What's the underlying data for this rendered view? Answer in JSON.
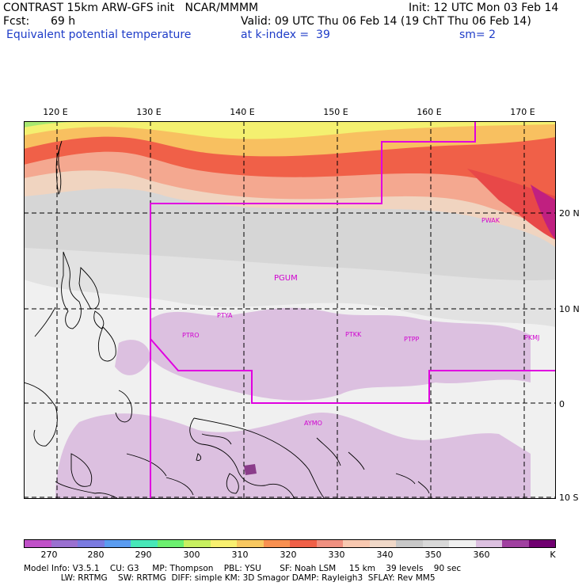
{
  "header": {
    "line1_left": "CONTRAST 15km ARW-GFS init   NCAR/MMMM",
    "line1_right": "Init: 12 UTC Mon 03 Feb 14",
    "fcst_label": "Fcst:",
    "fcst_value": "69 h",
    "valid": "Valid: 09 UTC Thu 06 Feb 14 (19 ChT Thu 06 Feb 14)",
    "field": "Equivalent potential temperature",
    "level": "at k-index =  39",
    "smoothing": "sm= 2"
  },
  "map": {
    "lon_labels": [
      "120 E",
      "130 E",
      "140 E",
      "150 E",
      "160 E",
      "170 E"
    ],
    "lat_labels": [
      "20 N",
      "10 N",
      "0",
      "10 S"
    ],
    "stations": [
      "PWAK",
      "PGUM",
      "PTYA",
      "PTRO",
      "PTKK",
      "PTPP",
      "PKMJ",
      "AYMO"
    ],
    "colors": {
      "boundary": "#e000e0",
      "land": "#000000"
    }
  },
  "colorbar": {
    "labels": [
      "270",
      "280",
      "290",
      "300",
      "310",
      "320",
      "330",
      "340",
      "350",
      "360"
    ],
    "unit": "K",
    "colors": [
      "#c050c8",
      "#9a70d0",
      "#7a7ae0",
      "#5a9cf0",
      "#48e8b8",
      "#6cf070",
      "#c8f060",
      "#f8f070",
      "#f8c860",
      "#f89050",
      "#f06048",
      "#f09080",
      "#f8c8b0",
      "#f0d8c8",
      "#c8c8c8",
      "#d8d8d8",
      "#f0f0f0",
      "#dcc0e0",
      "#a040a0",
      "#700070"
    ]
  },
  "footer": {
    "line1": "Model Info: V3.5.1    CU: G3     MP: Thompson    PBL: YSU       SF: Noah LSM     15 km    39 levels    90 sec",
    "line2": "              LW: RRTMG    SW: RRTMG  DIFF: simple KM: 3D Smagor DAMP: Rayleigh3  SFLAY: Rev MM5"
  }
}
